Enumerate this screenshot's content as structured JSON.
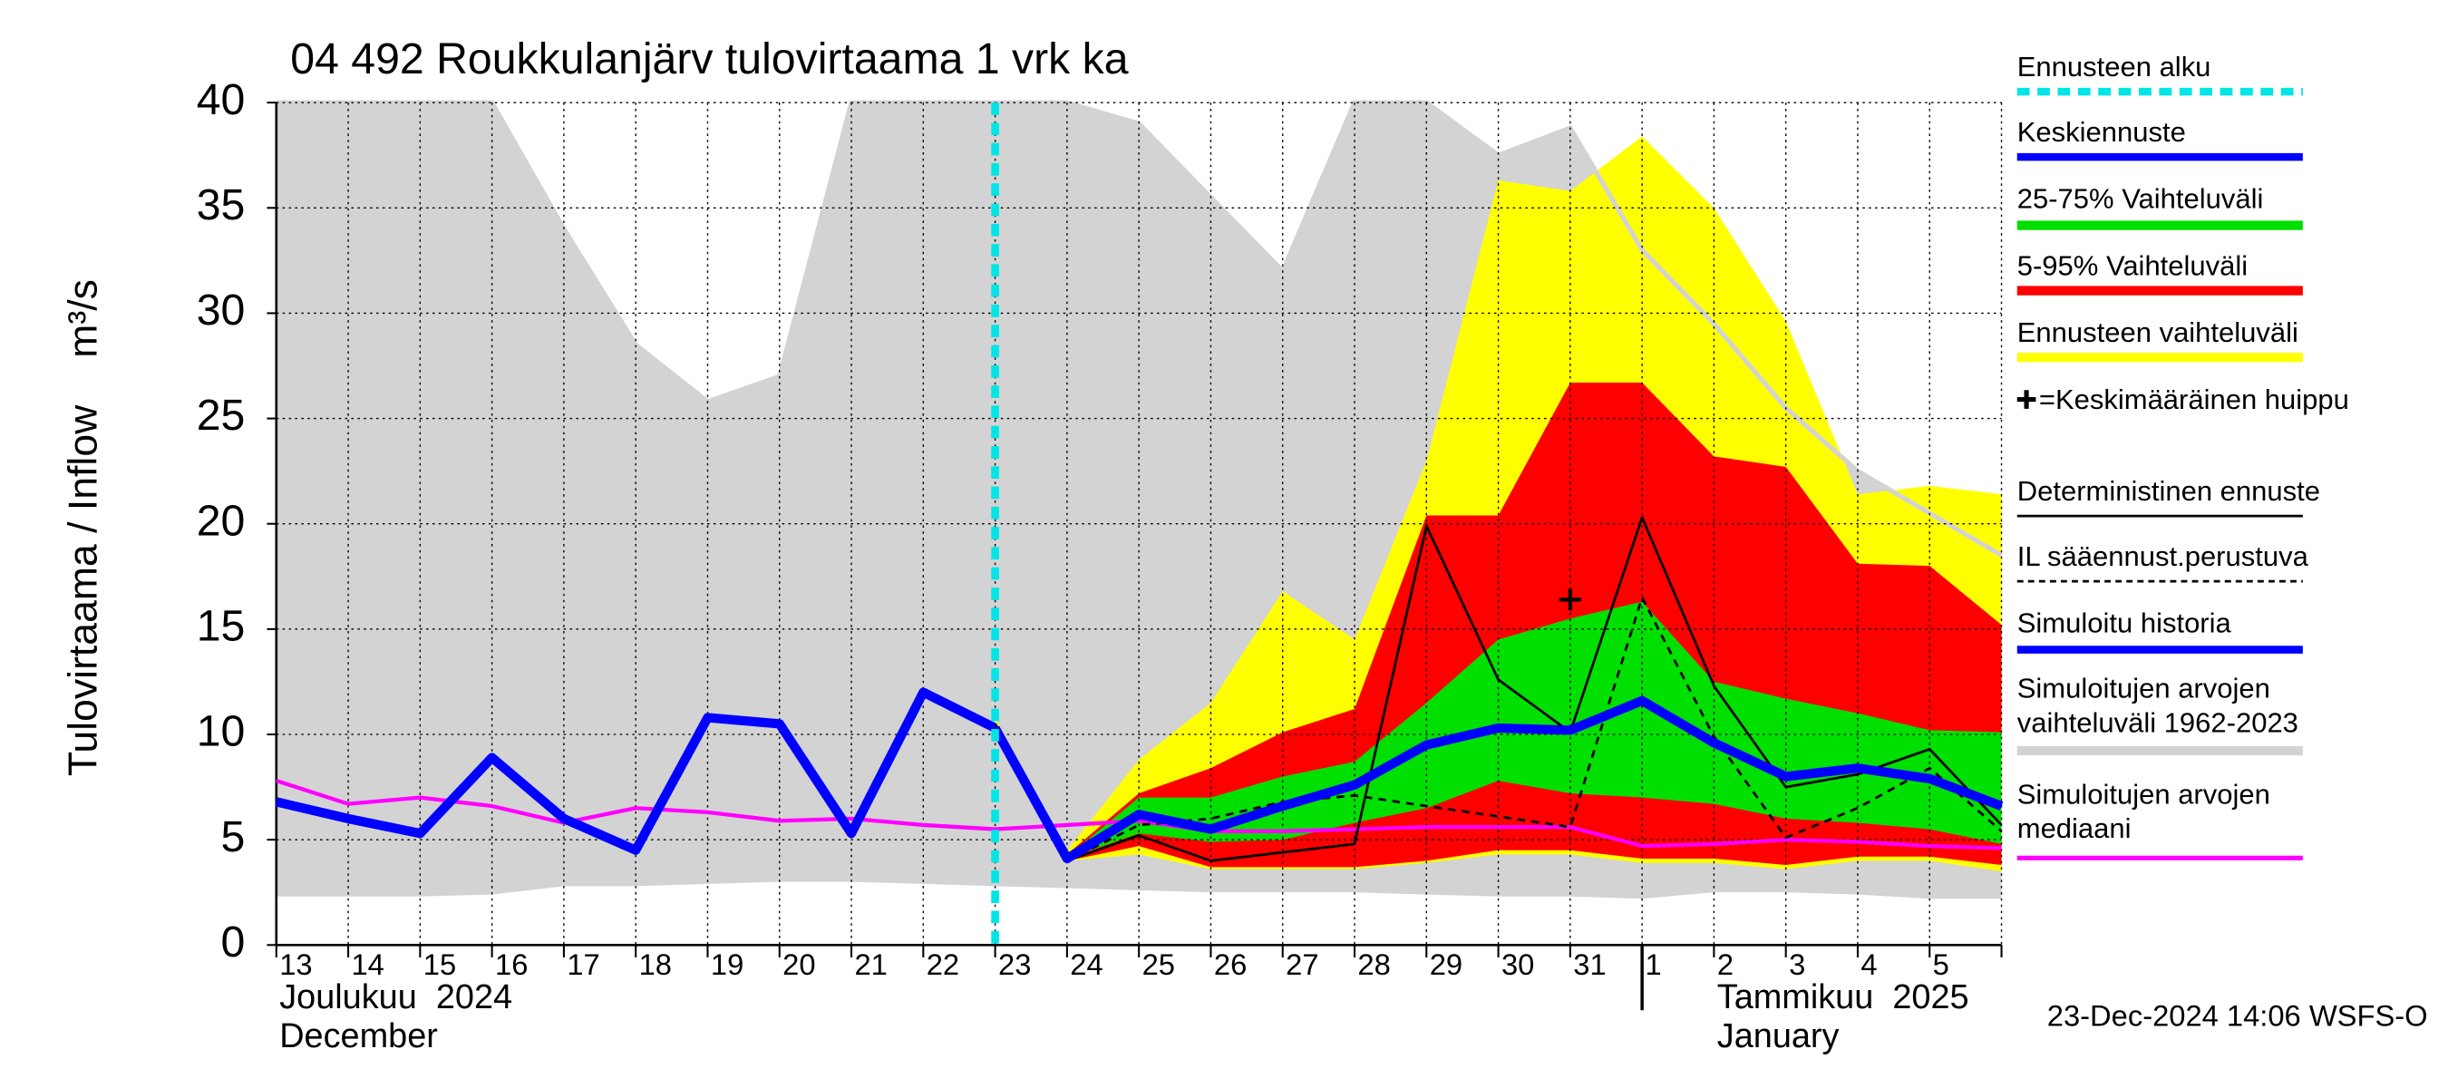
{
  "chart_data": {
    "type": "line",
    "title": "04 492 Roukkulanjärv tulovirtaama 1 vrk ka",
    "ylabel": "Tulovirtaama / Inflow",
    "yunit": "m³/s",
    "timestamp": "23-Dec-2024 14:06 WSFS-O",
    "categories": [
      "13",
      "14",
      "15",
      "16",
      "17",
      "18",
      "19",
      "20",
      "21",
      "22",
      "23",
      "24",
      "25",
      "26",
      "27",
      "28",
      "29",
      "30",
      "31",
      "1",
      "2",
      "3",
      "4",
      "5",
      null
    ],
    "months": [
      {
        "name_fi": "Joulukuu  2024",
        "name_en": "December",
        "start": "13"
      },
      {
        "name_fi": "Tammikuu  2025",
        "name_en": "January",
        "start": "1"
      }
    ],
    "ylim": [
      0,
      40
    ],
    "yticks": [
      0,
      5,
      10,
      15,
      20,
      25,
      30,
      35,
      40
    ],
    "grid": true,
    "series": [
      {
        "name": "Ennusteen alku",
        "color": "#00e5e5",
        "style": "vline",
        "at": "23"
      },
      {
        "name": "Keskiennuste",
        "color": "#0000ff",
        "style": "line",
        "width": 6,
        "values": [
          null,
          null,
          null,
          null,
          null,
          null,
          null,
          null,
          null,
          null,
          10.3,
          4.1,
          6.2,
          5.5,
          6.6,
          7.6,
          9.5,
          10.3,
          10.2,
          11.6,
          9.6,
          8.0,
          8.4,
          7.9,
          6.6
        ]
      },
      {
        "name": "25-75% Vaihteluväli",
        "color": "#00e000",
        "style": "band",
        "upper": [
          null,
          null,
          null,
          null,
          null,
          null,
          null,
          null,
          null,
          null,
          10.3,
          4.2,
          7.0,
          7.0,
          8.0,
          8.7,
          11.5,
          14.5,
          15.5,
          16.3,
          12.5,
          11.7,
          11.0,
          10.2,
          10.1
        ],
        "lower": [
          null,
          null,
          null,
          null,
          null,
          null,
          null,
          null,
          null,
          null,
          10.2,
          4.1,
          5.3,
          4.9,
          5.0,
          5.8,
          6.5,
          7.8,
          7.2,
          7.0,
          6.7,
          6.0,
          5.8,
          5.5,
          4.8
        ]
      },
      {
        "name": "5-95% Vaihteluväli",
        "color": "#ff0000",
        "style": "band",
        "upper": [
          null,
          null,
          null,
          null,
          null,
          null,
          null,
          null,
          null,
          null,
          10.5,
          4.3,
          7.2,
          8.4,
          10.1,
          11.2,
          20.4,
          20.4,
          26.7,
          26.7,
          23.2,
          22.7,
          18.1,
          18.0,
          15.2
        ],
        "lower": [
          null,
          null,
          null,
          null,
          null,
          null,
          null,
          null,
          null,
          null,
          10.0,
          4.0,
          4.7,
          3.7,
          3.7,
          3.7,
          4.0,
          4.5,
          4.5,
          4.1,
          4.1,
          3.8,
          4.2,
          4.2,
          3.8
        ]
      },
      {
        "name": "Ennusteen vaihteluväli",
        "color": "#ffff00",
        "style": "band",
        "upper": [
          null,
          null,
          null,
          null,
          null,
          null,
          null,
          null,
          null,
          null,
          10.8,
          4.5,
          8.8,
          11.5,
          16.8,
          14.5,
          23.0,
          36.3,
          35.8,
          38.4,
          35.0,
          29.6,
          21.4,
          21.8,
          21.4
        ],
        "lower": [
          null,
          null,
          null,
          null,
          null,
          null,
          null,
          null,
          null,
          null,
          10.0,
          4.0,
          4.3,
          3.6,
          3.6,
          3.6,
          3.9,
          4.3,
          4.3,
          3.9,
          3.9,
          3.6,
          4.0,
          4.0,
          3.5
        ]
      },
      {
        "name": "=Keskimääräinen huippu",
        "color": "#000000",
        "style": "marker",
        "at": "31",
        "value": 16.4
      },
      {
        "name": "Deterministinen ennuste",
        "color": "#000000",
        "style": "line",
        "width": 1.6,
        "values": [
          null,
          null,
          null,
          null,
          null,
          null,
          null,
          null,
          null,
          null,
          10.5,
          4.0,
          5.2,
          4.0,
          4.4,
          4.8,
          19.9,
          12.6,
          10.1,
          20.3,
          12.3,
          7.5,
          8.1,
          9.3,
          5.7
        ]
      },
      {
        "name": "IL sääennust.perustuva",
        "color": "#000000",
        "style": "dashed",
        "width": 1.6,
        "values": [
          null,
          null,
          null,
          null,
          null,
          null,
          null,
          null,
          null,
          null,
          10.5,
          4.0,
          5.7,
          6.0,
          6.8,
          7.1,
          6.6,
          6.1,
          5.6,
          16.5,
          9.9,
          5.1,
          6.5,
          8.4,
          5.4
        ]
      },
      {
        "name": "Simuloitu historia",
        "color": "#0000ff",
        "style": "line",
        "width": 6,
        "values": [
          6.8,
          6.0,
          5.3,
          8.9,
          6.0,
          4.5,
          10.8,
          10.5,
          5.3,
          12.0,
          10.3,
          null,
          null,
          null,
          null,
          null,
          null,
          null,
          null,
          null,
          null,
          null,
          null,
          null,
          null
        ]
      },
      {
        "name": "Simuloitujen arvojen vaihteluväli 1962-2023",
        "color": "#d3d3d3",
        "style": "band",
        "upper": [
          40,
          40,
          40,
          40,
          34,
          28.5,
          25.8,
          27,
          40,
          40,
          40,
          40,
          39,
          35.5,
          32,
          40,
          40,
          37.5,
          38.8,
          33,
          29.5,
          25.5,
          22.5,
          20.5,
          18.5
        ],
        "lower": [
          2.3,
          2.3,
          2.3,
          2.4,
          2.8,
          2.8,
          2.9,
          3.0,
          3.0,
          2.9,
          2.8,
          2.7,
          2.6,
          2.5,
          2.5,
          2.5,
          2.4,
          2.3,
          2.3,
          2.2,
          2.5,
          2.5,
          2.4,
          2.2,
          2.2
        ]
      },
      {
        "name": "Simuloitujen arvojen mediaani",
        "color": "#ff00ff",
        "style": "line",
        "width": 2.5,
        "values": [
          7.8,
          6.7,
          7.0,
          6.6,
          5.8,
          6.5,
          6.3,
          5.9,
          6.0,
          5.7,
          5.5,
          5.7,
          5.9,
          5.4,
          5.4,
          5.5,
          5.6,
          5.6,
          5.6,
          4.7,
          4.8,
          5.0,
          4.9,
          4.7,
          4.6
        ]
      }
    ]
  }
}
